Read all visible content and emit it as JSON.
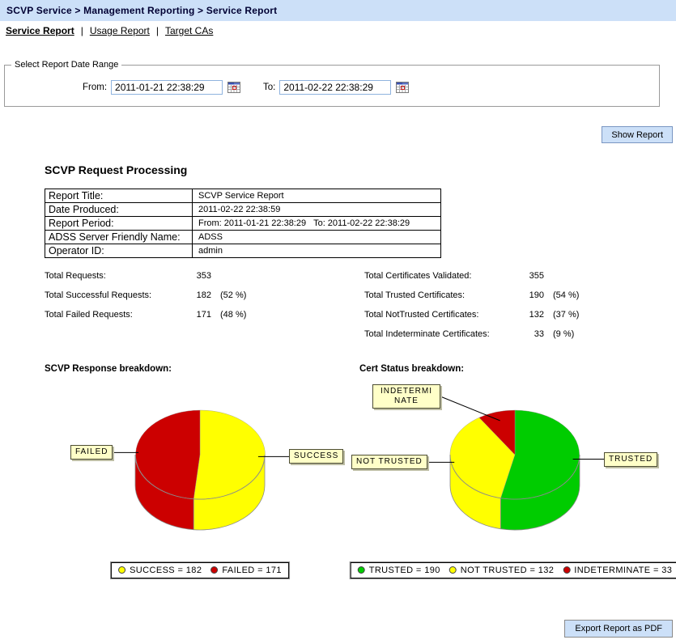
{
  "breadcrumb": "SCVP Service > Management Reporting > Service Report",
  "tab_separator": "|",
  "tabs": [
    {
      "label": "Service Report",
      "active": true
    },
    {
      "label": "Usage Report",
      "active": false
    },
    {
      "label": "Target CAs",
      "active": false
    }
  ],
  "date_range": {
    "legend": "Select Report Date Range",
    "from_label": "From:",
    "from_value": "2011-01-21 22:38:29",
    "to_label": "To:",
    "to_value": "2011-02-22 22:38:29"
  },
  "buttons": {
    "show_report": "Show Report",
    "export_pdf": "Export Report as PDF"
  },
  "report": {
    "heading": "SCVP Request Processing",
    "info_table": [
      {
        "label": "Report Title:",
        "value": "SCVP Service Report"
      },
      {
        "label": "Date Produced:",
        "value": "2011-02-22 22:38:59"
      },
      {
        "label": "Report Period:",
        "value": "From: 2011-01-21 22:38:29   To: 2011-02-22 22:38:29"
      },
      {
        "label": "ADSS Server Friendly Name:",
        "value": "ADSS"
      },
      {
        "label": "Operator ID:",
        "value": "admin"
      }
    ],
    "stats_left": [
      {
        "label": "Total Requests:",
        "value": "353",
        "pct": ""
      },
      {
        "label": "Total Successful Requests:",
        "value": "182",
        "pct": "(52 %)"
      },
      {
        "label": "Total Failed Requests:",
        "value": "171",
        "pct": "(48 %)"
      }
    ],
    "stats_right": [
      {
        "label": "Total Certificates Validated:",
        "value": "355",
        "pct": ""
      },
      {
        "label": "Total Trusted Certificates:",
        "value": "190",
        "pct": "(54 %)"
      },
      {
        "label": "Total NotTrusted Certificates:",
        "value": "132",
        "pct": "(37 %)"
      },
      {
        "label": "Total Indeterminate Certificates:",
        "value": "33",
        "pct": "(9 %)"
      }
    ]
  },
  "chart_data": [
    {
      "type": "pie",
      "style": "3d",
      "title": "SCVP Response breakdown:",
      "slices": [
        {
          "label": "SUCCESS",
          "value": 182,
          "color": "#ffff00"
        },
        {
          "label": "FAILED",
          "value": 171,
          "color": "#cc0000"
        }
      ],
      "legend": [
        "SUCCESS = 182",
        "FAILED = 171"
      ],
      "legend_position": "bottom"
    },
    {
      "type": "pie",
      "style": "3d",
      "title": "Cert Status breakdown:",
      "slices": [
        {
          "label": "TRUSTED",
          "value": 190,
          "color": "#00cc00"
        },
        {
          "label": "NOT TRUSTED",
          "value": 132,
          "color": "#ffff00"
        },
        {
          "label": "INDETERMINATE",
          "value": 33,
          "color": "#cc0000"
        }
      ],
      "legend": [
        "TRUSTED = 190",
        "NOT TRUSTED = 132",
        "INDETERMINATE = 33"
      ],
      "legend_position": "bottom"
    }
  ],
  "colors": {
    "topbar_bg": "#cce0f8",
    "button_bg": "#cce0f8",
    "callout_bg": "#ffffc8",
    "success_yellow": "#ffff00",
    "failed_red": "#cc0000",
    "trusted_green": "#00cc00"
  }
}
